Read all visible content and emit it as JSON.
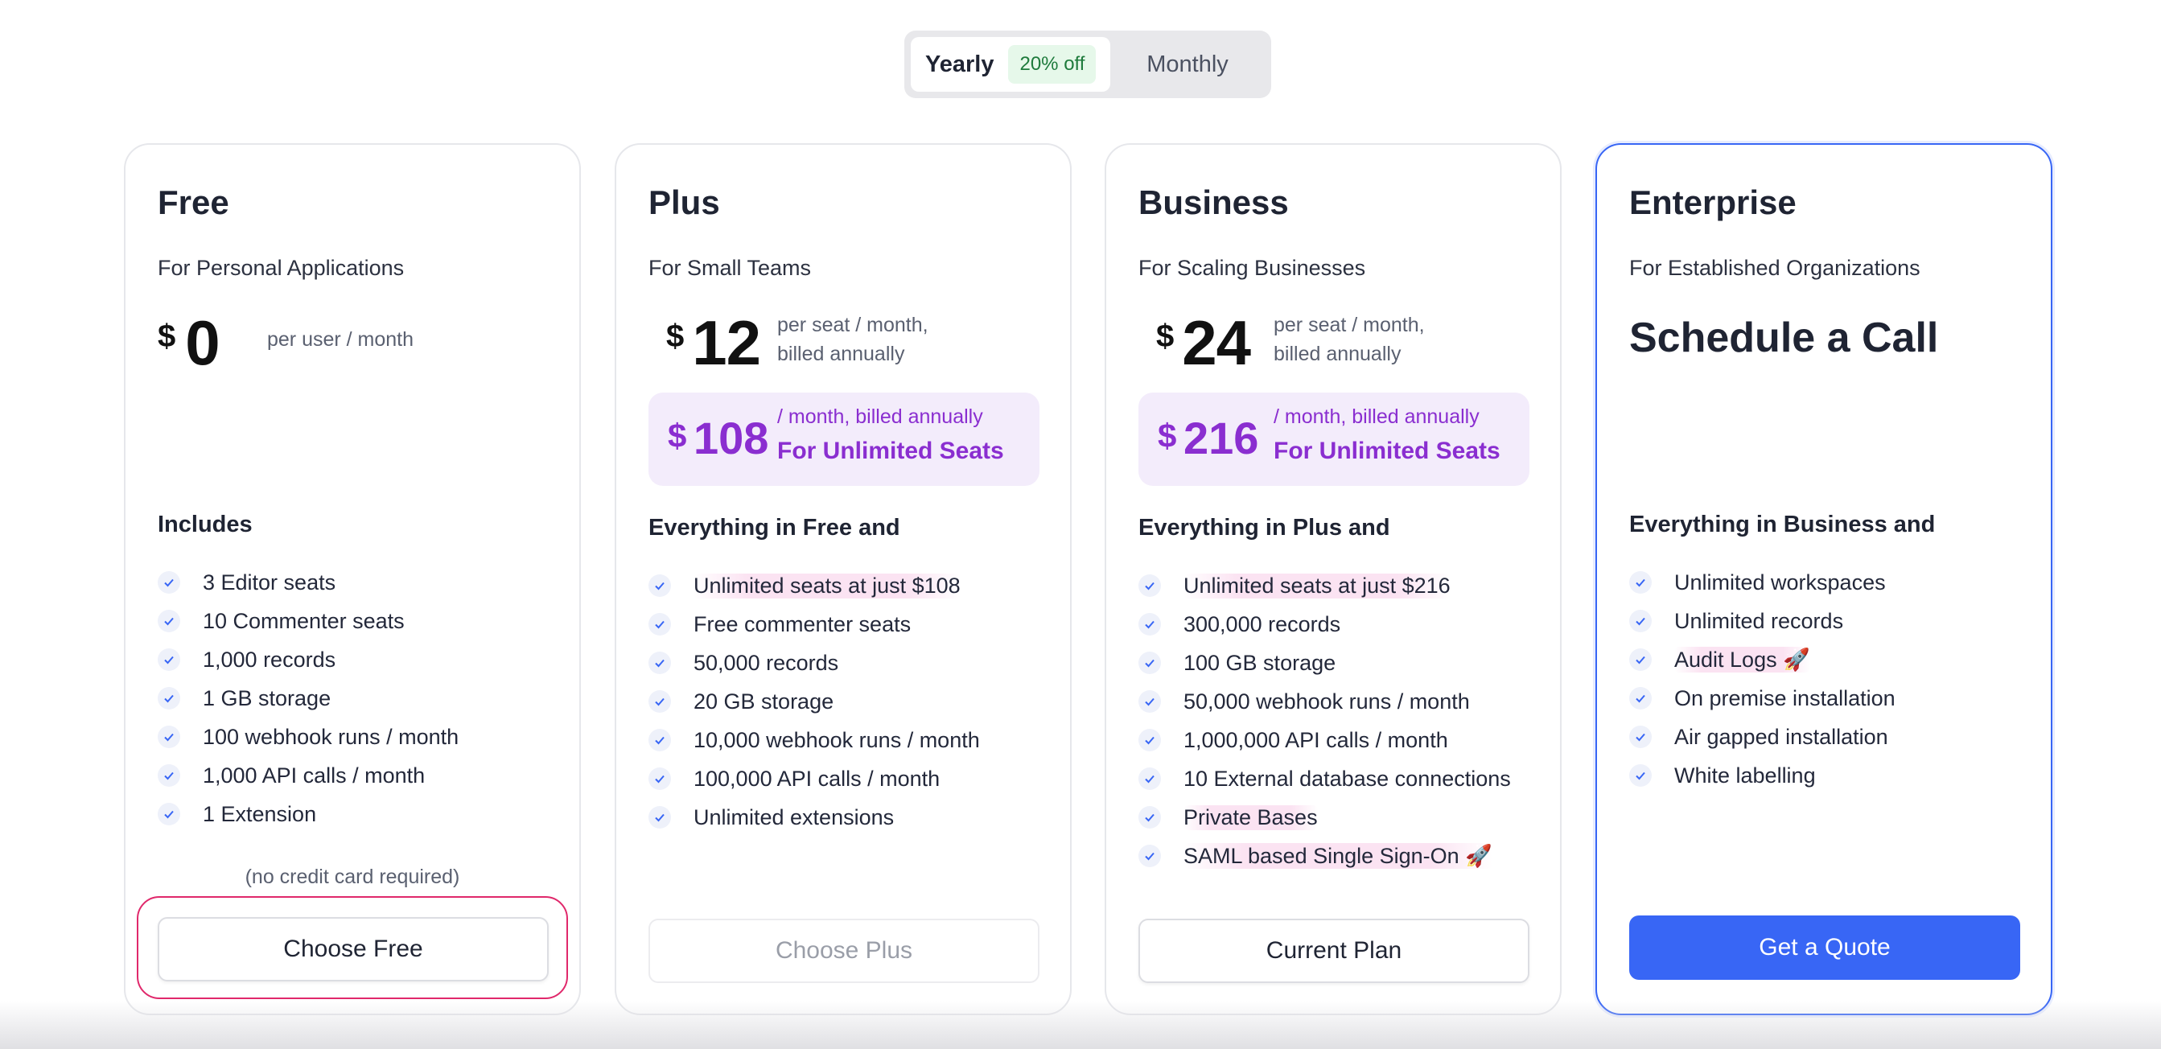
{
  "billing_toggle": {
    "yearly_label": "Yearly",
    "discount_badge": "20% off",
    "monthly_label": "Monthly",
    "selected": "Yearly"
  },
  "colors": {
    "accent_blue": "#3866f5",
    "unlimited_purple": "#8a2ed0",
    "focus_pink": "#e0286b",
    "discount_green": "#1e7b3c"
  },
  "plans": [
    {
      "name": "Free",
      "subtitle": "For Personal Applications",
      "currency": "$",
      "price": "0",
      "price_note": "per user / month",
      "section_title": "Includes",
      "features": [
        "3 Editor seats",
        "10 Commenter seats",
        "1,000 records",
        "1 GB storage",
        "100 webhook runs / month",
        "1,000 API calls / month",
        "1 Extension"
      ],
      "footnote": "(no credit card required)",
      "button_label": "Choose Free"
    },
    {
      "name": "Plus",
      "subtitle": "For Small Teams",
      "currency": "$",
      "price": "12",
      "price_note_line1": "per seat / month,",
      "price_note_line2": "billed annually",
      "unlimited": {
        "currency": "$",
        "price": "108",
        "note": "/ month, billed annually",
        "label": "For Unlimited Seats"
      },
      "section_title": "Everything in Free and",
      "features": [
        "Unlimited seats at just $108",
        "Free commenter seats",
        "50,000 records",
        "20 GB storage",
        "10,000 webhook runs / month",
        "100,000 API calls / month",
        "Unlimited extensions"
      ],
      "button_label": "Choose Plus"
    },
    {
      "name": "Business",
      "subtitle": "For Scaling Businesses",
      "currency": "$",
      "price": "24",
      "price_note_line1": "per seat / month,",
      "price_note_line2": "billed annually",
      "unlimited": {
        "currency": "$",
        "price": "216",
        "note": "/ month, billed annually",
        "label": "For Unlimited Seats"
      },
      "section_title": "Everything in Plus and",
      "features": [
        "Unlimited seats at just $216",
        "300,000 records",
        "100 GB storage",
        "50,000 webhook runs / month",
        "1,000,000 API calls / month",
        "10 External database connections",
        "Private Bases",
        "SAML based Single Sign-On 🚀"
      ],
      "button_label": "Current Plan"
    },
    {
      "name": "Enterprise",
      "subtitle": "For Established Organizations",
      "headline": "Schedule a Call",
      "section_title": "Everything in Business and",
      "features": [
        "Unlimited workspaces",
        "Unlimited records",
        "Audit Logs 🚀",
        "On premise installation",
        "Air gapped installation",
        "White labelling"
      ],
      "button_label": "Get a Quote"
    }
  ]
}
